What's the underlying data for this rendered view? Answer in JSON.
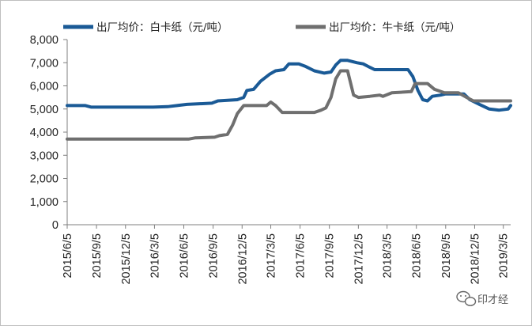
{
  "chart_data": {
    "type": "line",
    "title": "",
    "xlabel": "",
    "ylabel": "",
    "ylim": [
      0,
      8000
    ],
    "y_ticks": [
      "0",
      "1,000",
      "2,000",
      "3,000",
      "4,000",
      "5,000",
      "6,000",
      "7,000",
      "8,000"
    ],
    "y_tick_values": [
      0,
      1000,
      2000,
      3000,
      4000,
      5000,
      6000,
      7000,
      8000
    ],
    "x_ticks": [
      "2015/6/5",
      "2015/9/5",
      "2015/12/5",
      "2016/3/5",
      "2016/6/5",
      "2016/9/5",
      "2016/12/5",
      "2017/3/5",
      "2017/6/5",
      "2017/9/5",
      "2017/12/5",
      "2018/3/5",
      "2018/6/5",
      "2018/9/5",
      "2018/12/5",
      "2019/3/5"
    ],
    "x_range": [
      "2015/6/5",
      "2019/3/28"
    ],
    "grid": false,
    "legend_position": "top",
    "series": [
      {
        "name": "出厂均价：白卡纸（元/吨）",
        "color": "#1a5a96",
        "points": [
          [
            "2015/6/5",
            5150
          ],
          [
            "2015/8/1",
            5150
          ],
          [
            "2015/8/20",
            5080
          ],
          [
            "2016/3/1",
            5080
          ],
          [
            "2016/4/15",
            5100
          ],
          [
            "2016/5/15",
            5150
          ],
          [
            "2016/6/15",
            5200
          ],
          [
            "2016/9/1",
            5250
          ],
          [
            "2016/9/20",
            5350
          ],
          [
            "2016/11/20",
            5400
          ],
          [
            "2016/12/10",
            5500
          ],
          [
            "2016/12/20",
            5800
          ],
          [
            "2017/1/10",
            5850
          ],
          [
            "2017/2/1",
            6200
          ],
          [
            "2017/3/1",
            6500
          ],
          [
            "2017/3/20",
            6650
          ],
          [
            "2017/4/15",
            6700
          ],
          [
            "2017/5/1",
            6950
          ],
          [
            "2017/6/1",
            6950
          ],
          [
            "2017/6/20",
            6850
          ],
          [
            "2017/7/20",
            6650
          ],
          [
            "2017/8/20",
            6550
          ],
          [
            "2017/9/10",
            6600
          ],
          [
            "2017/9/25",
            6900
          ],
          [
            "2017/10/10",
            7100
          ],
          [
            "2017/11/1",
            7100
          ],
          [
            "2017/12/1",
            7000
          ],
          [
            "2017/12/20",
            6950
          ],
          [
            "2018/1/10",
            6800
          ],
          [
            "2018/1/25",
            6700
          ],
          [
            "2018/5/10",
            6700
          ],
          [
            "2018/5/25",
            6400
          ],
          [
            "2018/6/10",
            5800
          ],
          [
            "2018/6/25",
            5400
          ],
          [
            "2018/7/10",
            5350
          ],
          [
            "2018/7/25",
            5550
          ],
          [
            "2018/8/20",
            5600
          ],
          [
            "2018/9/5",
            5650
          ],
          [
            "2018/11/1",
            5650
          ],
          [
            "2018/11/20",
            5400
          ],
          [
            "2018/12/20",
            5200
          ],
          [
            "2019/1/20",
            5000
          ],
          [
            "2019/2/20",
            4950
          ],
          [
            "2019/3/20",
            5000
          ],
          [
            "2019/3/28",
            5150
          ]
        ]
      },
      {
        "name": "出厂均价：牛卡纸（元/吨）",
        "color": "#6f6f6f",
        "points": [
          [
            "2015/6/5",
            3700
          ],
          [
            "2016/6/20",
            3700
          ],
          [
            "2016/7/10",
            3750
          ],
          [
            "2016/9/10",
            3780
          ],
          [
            "2016/9/25",
            3850
          ],
          [
            "2016/10/20",
            3900
          ],
          [
            "2016/11/5",
            4300
          ],
          [
            "2016/11/20",
            4800
          ],
          [
            "2016/12/10",
            5150
          ],
          [
            "2017/2/20",
            5150
          ],
          [
            "2017/3/5",
            5300
          ],
          [
            "2017/3/20",
            5150
          ],
          [
            "2017/4/10",
            4850
          ],
          [
            "2017/7/20",
            4850
          ],
          [
            "2017/8/10",
            4950
          ],
          [
            "2017/8/25",
            5050
          ],
          [
            "2017/9/10",
            5500
          ],
          [
            "2017/9/25",
            6300
          ],
          [
            "2017/10/10",
            6650
          ],
          [
            "2017/11/1",
            6650
          ],
          [
            "2017/11/20",
            5600
          ],
          [
            "2017/12/5",
            5500
          ],
          [
            "2018/1/10",
            5550
          ],
          [
            "2018/2/10",
            5600
          ],
          [
            "2018/2/20",
            5550
          ],
          [
            "2018/3/20",
            5700
          ],
          [
            "2018/5/20",
            5750
          ],
          [
            "2018/6/1",
            6100
          ],
          [
            "2018/7/10",
            6100
          ],
          [
            "2018/8/1",
            5850
          ],
          [
            "2018/9/1",
            5700
          ],
          [
            "2018/10/15",
            5700
          ],
          [
            "2018/11/10",
            5500
          ],
          [
            "2018/12/1",
            5350
          ],
          [
            "2019/3/28",
            5350
          ]
        ]
      }
    ]
  },
  "watermark": {
    "text": "印才经",
    "icon": "wechat-icon"
  }
}
